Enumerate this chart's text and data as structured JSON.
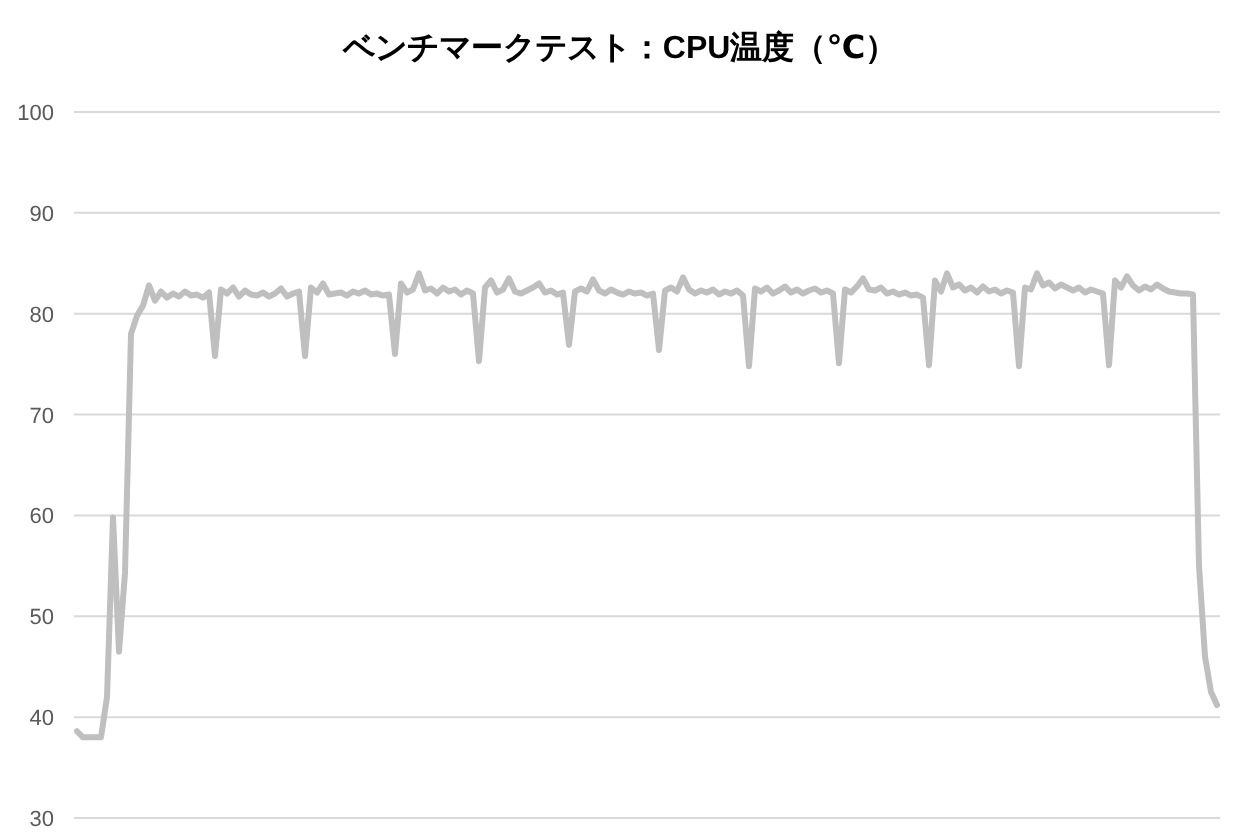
{
  "chart_data": {
    "type": "line",
    "title": "ベンチマークテスト：CPU温度（℃）",
    "categories": [
      null,
      null,
      null,
      null,
      null,
      null,
      null,
      null,
      null,
      null,
      null,
      null,
      null,
      null,
      null,
      null,
      null,
      null,
      null,
      null,
      null,
      null,
      null,
      null,
      null,
      null,
      null,
      null,
      null,
      null,
      null,
      null,
      null,
      null,
      null,
      null,
      null,
      null,
      null,
      null,
      null,
      null,
      null,
      null,
      null,
      null,
      null,
      null,
      null,
      null,
      null,
      null,
      null,
      null,
      null,
      null,
      null,
      null,
      null,
      null,
      null,
      null,
      null,
      null,
      null,
      null,
      null,
      null,
      null,
      null,
      null,
      null,
      null,
      null,
      null,
      null,
      null,
      null,
      null,
      null,
      null,
      null,
      null,
      null,
      null,
      null,
      null,
      null,
      null,
      null,
      null,
      null,
      null,
      null,
      null,
      null,
      null,
      null,
      null,
      null,
      null,
      null,
      null,
      null,
      null,
      null,
      null,
      null,
      null,
      null,
      null,
      null,
      null,
      null,
      null,
      null,
      null,
      null,
      null,
      null,
      null,
      null,
      null,
      null,
      null,
      null,
      null,
      null,
      null,
      null,
      null,
      null,
      null,
      null,
      null,
      null,
      null,
      null,
      null,
      null,
      null,
      null,
      null,
      null,
      null,
      null,
      null,
      null,
      null,
      null,
      null,
      null,
      null,
      null,
      null,
      null,
      null,
      null,
      null,
      null,
      null,
      null,
      null,
      null,
      null,
      null,
      null,
      null,
      null,
      null,
      null,
      null,
      null,
      null,
      null,
      null,
      null,
      null,
      null,
      null,
      null,
      null,
      null,
      null,
      null,
      null,
      null,
      null,
      null,
      null,
      null
    ],
    "series": [
      {
        "color": "#bfbfbf",
        "values": [
          38.6,
          38.0,
          38.0,
          38.0,
          38.0,
          42.0,
          59.8,
          46.5,
          54.3,
          78.0,
          79.8,
          80.8,
          82.8,
          81.3,
          82.2,
          81.6,
          82.0,
          81.7,
          82.2,
          81.8,
          81.9,
          81.6,
          82.1,
          75.8,
          82.4,
          82.0,
          82.6,
          81.7,
          82.3,
          81.9,
          81.8,
          82.1,
          81.7,
          82.0,
          82.5,
          81.7,
          82.0,
          82.2,
          75.8,
          82.6,
          82.1,
          83.0,
          81.9,
          82.0,
          82.1,
          81.8,
          82.2,
          82.0,
          82.3,
          81.9,
          82.0,
          81.8,
          81.9,
          76.0,
          83.0,
          82.1,
          82.4,
          84.0,
          82.3,
          82.5,
          82.0,
          82.6,
          82.2,
          82.4,
          81.9,
          82.3,
          82.0,
          75.3,
          82.6,
          83.3,
          82.1,
          82.4,
          83.5,
          82.2,
          82.0,
          82.3,
          82.6,
          83.0,
          82.1,
          82.3,
          81.9,
          82.1,
          76.9,
          82.2,
          82.5,
          82.2,
          83.4,
          82.3,
          82.0,
          82.4,
          82.1,
          81.9,
          82.2,
          82.0,
          82.1,
          81.8,
          82.0,
          76.4,
          82.3,
          82.6,
          82.2,
          83.6,
          82.4,
          82.0,
          82.3,
          82.1,
          82.4,
          81.9,
          82.2,
          82.0,
          82.3,
          81.8,
          74.8,
          82.5,
          82.2,
          82.6,
          82.0,
          82.3,
          82.7,
          82.1,
          82.4,
          82.0,
          82.3,
          82.5,
          82.1,
          82.3,
          82.0,
          75.1,
          82.4,
          82.1,
          82.7,
          83.5,
          82.4,
          82.3,
          82.6,
          82.0,
          82.2,
          81.9,
          82.1,
          81.8,
          81.9,
          81.6,
          74.9,
          83.3,
          82.2,
          84.0,
          82.6,
          82.9,
          82.3,
          82.6,
          82.1,
          82.7,
          82.2,
          82.4,
          82.0,
          82.3,
          82.1,
          74.8,
          82.6,
          82.4,
          84.0,
          82.8,
          83.1,
          82.5,
          82.9,
          82.6,
          82.3,
          82.6,
          82.1,
          82.4,
          82.2,
          82.0,
          74.9,
          83.3,
          82.6,
          83.7,
          82.8,
          82.3,
          82.7,
          82.4,
          82.9,
          82.5,
          82.2,
          82.1,
          82.0,
          82.0,
          81.9,
          55.0,
          46.0,
          42.5,
          41.2
        ]
      }
    ],
    "ylim": [
      30,
      100
    ],
    "yticks": [
      30,
      40,
      50,
      60,
      70,
      80,
      90,
      100
    ],
    "grid": "y",
    "tick_labels": "y"
  }
}
